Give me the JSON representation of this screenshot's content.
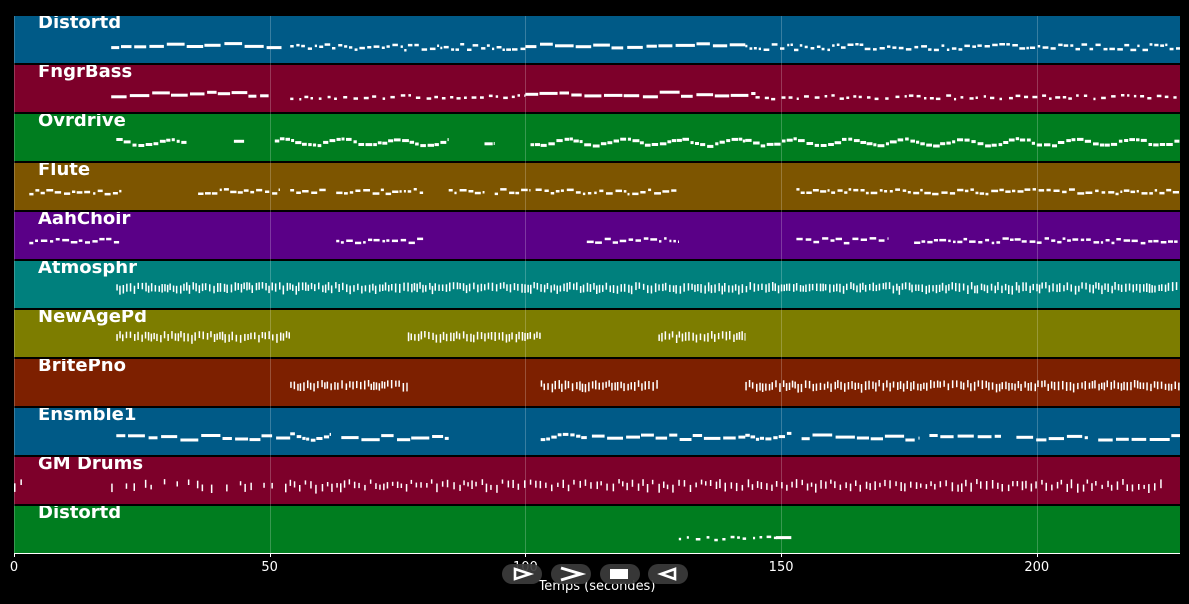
{
  "chart_data": {
    "type": "piano-roll",
    "xlabel": "Temps (secondes)",
    "xlim": [
      0,
      228
    ],
    "xticks": [
      0,
      50,
      100,
      150,
      200
    ],
    "tracks": [
      {
        "name": "Distortd",
        "color": "#005a87",
        "segments": [
          [
            19,
            53,
            "bars"
          ],
          [
            54,
            100,
            "dense"
          ],
          [
            100,
            143,
            "bars"
          ],
          [
            143,
            228,
            "dense"
          ]
        ]
      },
      {
        "name": "FngrBass",
        "color": "#7d002a",
        "segments": [
          [
            19,
            50,
            "bars"
          ],
          [
            54,
            100,
            "sparse"
          ],
          [
            100,
            145,
            "bars"
          ],
          [
            145,
            228,
            "sparse"
          ]
        ]
      },
      {
        "name": "Ovrdrive",
        "color": "#007d1f",
        "segments": [
          [
            20,
            34,
            "wave"
          ],
          [
            43,
            45,
            "bars"
          ],
          [
            51,
            85,
            "wave"
          ],
          [
            92,
            94,
            "bars"
          ],
          [
            101,
            143,
            "wave"
          ],
          [
            143,
            228,
            "wave"
          ]
        ]
      },
      {
        "name": "Flute",
        "color": "#7d5500",
        "segments": [
          [
            3,
            21,
            "dash"
          ],
          [
            36,
            52,
            "dash"
          ],
          [
            54,
            61,
            "dash"
          ],
          [
            63,
            80,
            "dash"
          ],
          [
            85,
            92,
            "dash"
          ],
          [
            94,
            101,
            "dash"
          ],
          [
            102,
            130,
            "dash"
          ],
          [
            153,
            228,
            "dash"
          ]
        ]
      },
      {
        "name": "AahChoir",
        "color": "#5a0087",
        "segments": [
          [
            3,
            21,
            "dash"
          ],
          [
            63,
            80,
            "dash"
          ],
          [
            112,
            130,
            "dash"
          ],
          [
            153,
            171,
            "dash"
          ],
          [
            176,
            228,
            "dash"
          ]
        ]
      },
      {
        "name": "Atmosphr",
        "color": "#00807d",
        "segments": [
          [
            20,
            228,
            "pad"
          ]
        ]
      },
      {
        "name": "NewAgePd",
        "color": "#7d7d00",
        "segments": [
          [
            20,
            54,
            "pad"
          ],
          [
            77,
            103,
            "pad"
          ],
          [
            126,
            143,
            "pad"
          ]
        ]
      },
      {
        "name": "BritePno",
        "color": "#7d2000",
        "segments": [
          [
            54,
            77,
            "pad"
          ],
          [
            103,
            126,
            "pad"
          ],
          [
            143,
            228,
            "pad"
          ]
        ]
      },
      {
        "name": "Ensmble1",
        "color": "#005a87",
        "segments": [
          [
            20,
            54,
            "bars"
          ],
          [
            54,
            62,
            "wave"
          ],
          [
            64,
            85,
            "bars"
          ],
          [
            103,
            112,
            "wave"
          ],
          [
            113,
            143,
            "bars"
          ],
          [
            143,
            152,
            "wave"
          ],
          [
            154,
            177,
            "bars"
          ],
          [
            179,
            193,
            "bars"
          ],
          [
            196,
            210,
            "bars"
          ],
          [
            212,
            228,
            "bars"
          ]
        ]
      },
      {
        "name": "GM Drums",
        "color": "#7d002a",
        "segments": [
          [
            0,
            2,
            "drum"
          ],
          [
            19,
            53,
            "drum-sparse"
          ],
          [
            53,
            225,
            "drum"
          ]
        ]
      },
      {
        "name": "Distortd",
        "color": "#007d1f",
        "segments": [
          [
            130,
            150,
            "sparse"
          ],
          [
            149,
            152,
            "bars"
          ]
        ]
      }
    ]
  },
  "controls": [
    {
      "name": "play-button",
      "icon": "play-icon"
    },
    {
      "name": "fast-forward-button",
      "icon": "forward-icon"
    },
    {
      "name": "stop-button",
      "icon": "stop-icon"
    },
    {
      "name": "rewind-button",
      "icon": "rewind-icon"
    }
  ]
}
